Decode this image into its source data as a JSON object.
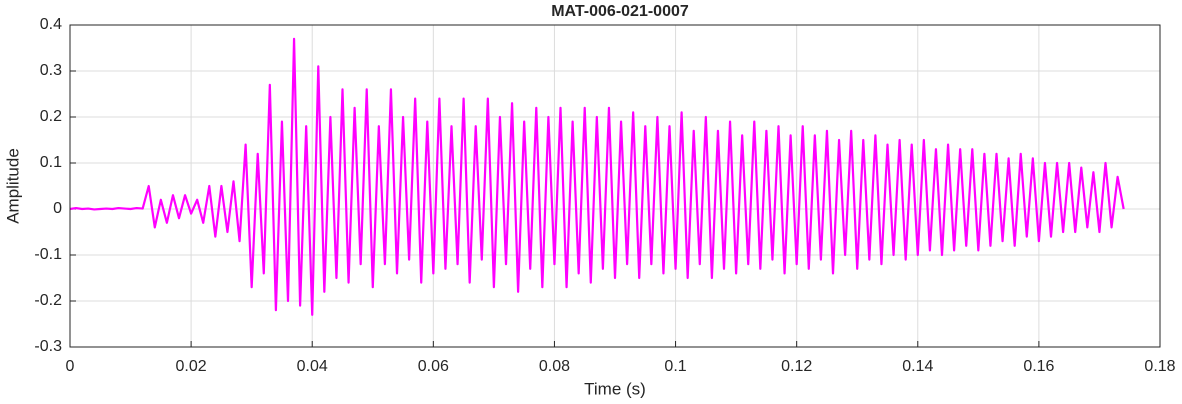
{
  "chart_data": {
    "type": "line",
    "title": "MAT-006-021-0007",
    "xlabel": "Time (s)",
    "ylabel": "Amplitude",
    "color": "#ff00ff",
    "grid": true,
    "xlim": [
      0,
      0.18
    ],
    "ylim": [
      -0.3,
      0.4
    ],
    "xticks": [
      0,
      0.02,
      0.04,
      0.06,
      0.08,
      0.1,
      0.12,
      0.14,
      0.16,
      0.18
    ],
    "yticks": [
      -0.3,
      -0.2,
      -0.1,
      0,
      0.1,
      0.2,
      0.3,
      0.4
    ],
    "x": [
      0,
      0.001,
      0.002,
      0.003,
      0.004,
      0.005,
      0.006,
      0.007,
      0.008,
      0.009,
      0.01,
      0.011,
      0.012,
      0.013,
      0.014,
      0.015,
      0.016,
      0.017,
      0.018,
      0.019,
      0.02,
      0.021,
      0.022,
      0.023,
      0.024,
      0.025,
      0.026,
      0.027,
      0.028,
      0.029,
      0.03,
      0.031,
      0.032,
      0.033,
      0.034,
      0.035,
      0.036,
      0.037,
      0.038,
      0.039,
      0.04,
      0.041,
      0.042,
      0.043,
      0.044,
      0.045,
      0.046,
      0.047,
      0.048,
      0.049,
      0.05,
      0.051,
      0.052,
      0.053,
      0.054,
      0.055,
      0.056,
      0.057,
      0.058,
      0.059,
      0.06,
      0.061,
      0.062,
      0.063,
      0.064,
      0.065,
      0.066,
      0.067,
      0.068,
      0.069,
      0.07,
      0.071,
      0.072,
      0.073,
      0.074,
      0.075,
      0.076,
      0.077,
      0.078,
      0.079,
      0.08,
      0.081,
      0.082,
      0.083,
      0.084,
      0.085,
      0.086,
      0.087,
      0.088,
      0.089,
      0.09,
      0.091,
      0.092,
      0.093,
      0.094,
      0.095,
      0.096,
      0.097,
      0.098,
      0.099,
      0.1,
      0.101,
      0.102,
      0.103,
      0.104,
      0.105,
      0.106,
      0.107,
      0.108,
      0.109,
      0.11,
      0.111,
      0.112,
      0.113,
      0.114,
      0.115,
      0.116,
      0.117,
      0.118,
      0.119,
      0.12,
      0.121,
      0.122,
      0.123,
      0.124,
      0.125,
      0.126,
      0.127,
      0.128,
      0.129,
      0.13,
      0.131,
      0.132,
      0.133,
      0.134,
      0.135,
      0.136,
      0.137,
      0.138,
      0.139,
      0.14,
      0.141,
      0.142,
      0.143,
      0.144,
      0.145,
      0.146,
      0.147,
      0.148,
      0.149,
      0.15,
      0.151,
      0.152,
      0.153,
      0.154,
      0.155,
      0.156,
      0.157,
      0.158,
      0.159,
      0.16,
      0.161,
      0.162,
      0.163,
      0.164,
      0.165,
      0.166,
      0.167,
      0.168,
      0.169,
      0.17,
      0.171,
      0.172,
      0.173,
      0.174
    ],
    "values": [
      0,
      0.002,
      0,
      0.001,
      -0.001,
      0,
      0.001,
      0,
      0.002,
      0.001,
      0,
      0.002,
      0.001,
      0.05,
      -0.04,
      0.02,
      -0.03,
      0.03,
      -0.02,
      0.03,
      -0.01,
      0.02,
      -0.03,
      0.05,
      -0.06,
      0.05,
      -0.05,
      0.06,
      -0.07,
      0.14,
      -0.17,
      0.12,
      -0.14,
      0.27,
      -0.22,
      0.19,
      -0.2,
      0.37,
      -0.21,
      0.18,
      -0.23,
      0.31,
      -0.18,
      0.2,
      -0.15,
      0.26,
      -0.16,
      0.22,
      -0.12,
      0.26,
      -0.17,
      0.18,
      -0.12,
      0.26,
      -0.14,
      0.2,
      -0.11,
      0.24,
      -0.16,
      0.19,
      -0.14,
      0.24,
      -0.13,
      0.18,
      -0.12,
      0.24,
      -0.16,
      0.18,
      -0.11,
      0.24,
      -0.17,
      0.2,
      -0.12,
      0.23,
      -0.18,
      0.19,
      -0.13,
      0.22,
      -0.17,
      0.2,
      -0.12,
      0.22,
      -0.17,
      0.19,
      -0.14,
      0.22,
      -0.16,
      0.2,
      -0.13,
      0.22,
      -0.15,
      0.19,
      -0.12,
      0.21,
      -0.15,
      0.18,
      -0.12,
      0.2,
      -0.14,
      0.18,
      -0.13,
      0.21,
      -0.15,
      0.17,
      -0.12,
      0.2,
      -0.15,
      0.17,
      -0.13,
      0.19,
      -0.14,
      0.16,
      -0.12,
      0.19,
      -0.13,
      0.17,
      -0.11,
      0.18,
      -0.14,
      0.16,
      -0.12,
      0.18,
      -0.13,
      0.16,
      -0.11,
      0.17,
      -0.14,
      0.15,
      -0.1,
      0.17,
      -0.13,
      0.15,
      -0.11,
      0.16,
      -0.12,
      0.14,
      -0.1,
      0.15,
      -0.11,
      0.14,
      -0.1,
      0.15,
      -0.09,
      0.13,
      -0.1,
      0.14,
      -0.09,
      0.13,
      -0.08,
      0.13,
      -0.09,
      0.12,
      -0.08,
      0.12,
      -0.07,
      0.11,
      -0.08,
      0.12,
      -0.06,
      0.11,
      -0.07,
      0.1,
      -0.06,
      0.1,
      -0.05,
      0.1,
      -0.05,
      0.09,
      -0.04,
      0.08,
      -0.05,
      0.1,
      -0.04,
      0.07,
      0
    ]
  }
}
